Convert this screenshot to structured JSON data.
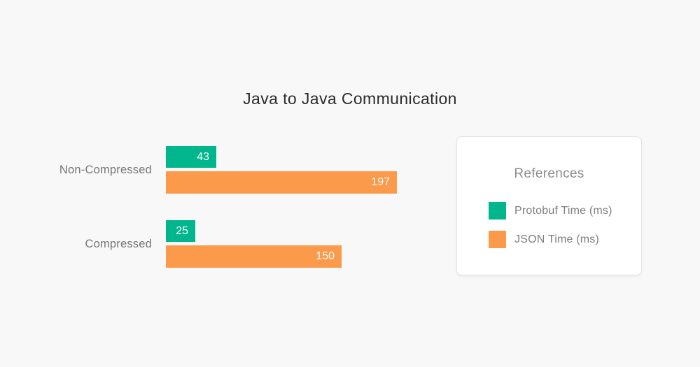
{
  "page": {
    "background": "#f8f8f8"
  },
  "chart_data": {
    "type": "bar",
    "orientation": "horizontal",
    "title": "Java to Java Communication",
    "categories": [
      "Non-Compressed",
      "Compressed"
    ],
    "series": [
      {
        "name": "Protobuf Time (ms)",
        "color": "#00b68c",
        "values": [
          43,
          25
        ]
      },
      {
        "name": "JSON Time (ms)",
        "color": "#fb9a4b",
        "values": [
          197,
          150
        ]
      }
    ],
    "value_labels": true,
    "xlabel": "",
    "ylabel": "",
    "xlim": [
      0,
      197
    ],
    "grid": false,
    "axes_visible": false,
    "legend_position": "right"
  },
  "legend": {
    "title": "References",
    "items": [
      {
        "label": "Protobuf Time (ms)",
        "color": "#00b68c"
      },
      {
        "label": "JSON Time (ms)",
        "color": "#fb9a4b"
      }
    ]
  }
}
